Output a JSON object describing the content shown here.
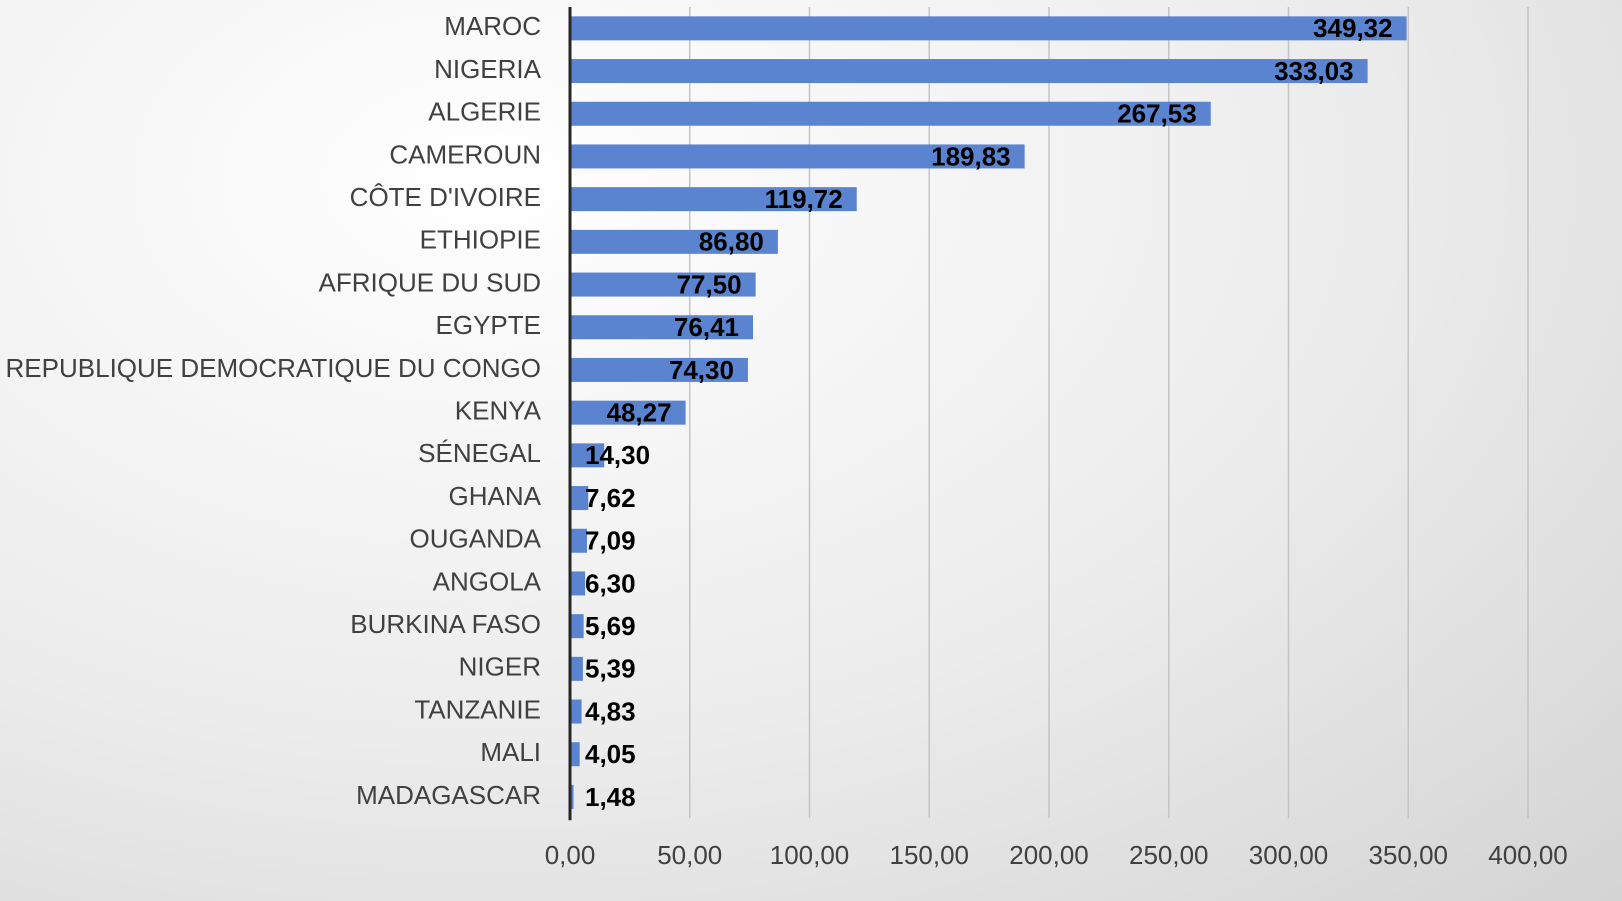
{
  "chart_data": {
    "type": "barh",
    "categories": [
      "MAROC",
      "NIGERIA",
      "ALGERIE",
      "CAMEROUN",
      "CÔTE D'IVOIRE",
      "ETHIOPIE",
      "AFRIQUE DU SUD",
      "EGYPTE",
      "REPUBLIQUE DEMOCRATIQUE DU CONGO",
      "KENYA",
      "SÉNEGAL",
      "GHANA",
      "OUGANDA",
      "ANGOLA",
      "BURKINA FASO",
      "NIGER",
      "TANZANIE",
      "MALI",
      "MADAGASCAR"
    ],
    "values": [
      349.32,
      333.03,
      267.53,
      189.83,
      119.72,
      86.8,
      77.5,
      76.41,
      74.3,
      48.27,
      14.3,
      7.62,
      7.09,
      6.3,
      5.69,
      5.39,
      4.83,
      4.05,
      1.48
    ],
    "value_labels": [
      "349,32",
      "333,03",
      "267,53",
      "189,83",
      "119,72",
      "86,80",
      "77,50",
      "76,41",
      "74,30",
      "48,27",
      "14,30",
      "7,62",
      "7,09",
      "6,30",
      "5,69",
      "5,39",
      "4,83",
      "4,05",
      "1,48"
    ],
    "color": "#5b84d0",
    "xlim": [
      0,
      400
    ],
    "xticks": [
      {
        "value": 0,
        "label": "0,00"
      },
      {
        "value": 50,
        "label": "50,00"
      },
      {
        "value": 100,
        "label": "100,00"
      },
      {
        "value": 150,
        "label": "150,00"
      },
      {
        "value": 200,
        "label": "200,00"
      },
      {
        "value": 250,
        "label": "250,00"
      },
      {
        "value": 300,
        "label": "300,00"
      },
      {
        "value": 350,
        "label": "350,00"
      },
      {
        "value": 400,
        "label": "400,00"
      }
    ],
    "grid": true
  }
}
